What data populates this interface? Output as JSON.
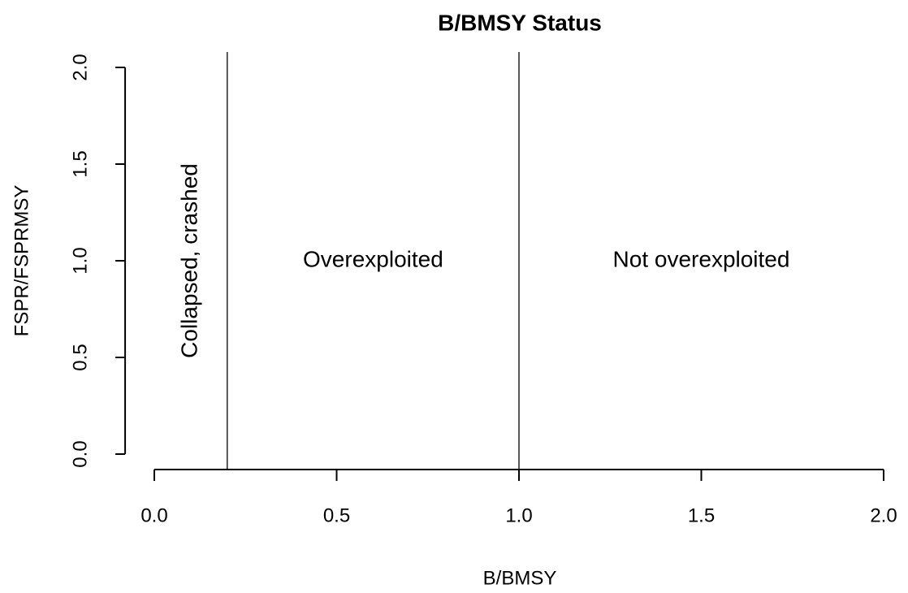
{
  "chart_data": {
    "type": "quadrant",
    "title": "B/BMSY Status",
    "xlabel": "B/BMSY",
    "ylabel": "FSPR/FSPRMSY",
    "xlim": [
      0,
      2
    ],
    "ylim": [
      0,
      2
    ],
    "xticks": [
      {
        "value": 0,
        "label": "0.0"
      },
      {
        "value": 0.5,
        "label": "0.5"
      },
      {
        "value": 1,
        "label": "1.0"
      },
      {
        "value": 1.5,
        "label": "1.5"
      },
      {
        "value": 2,
        "label": "2.0"
      }
    ],
    "yticks": [
      {
        "value": 0,
        "label": "0.0"
      },
      {
        "value": 0.5,
        "label": "0.5"
      },
      {
        "value": 1,
        "label": "1.0"
      },
      {
        "value": 1.5,
        "label": "1.5"
      },
      {
        "value": 2,
        "label": "2.0"
      }
    ],
    "vlines": [
      0.2,
      1.0
    ],
    "color": "#000000",
    "annotations": [
      {
        "text": "Collapsed, crashed",
        "x": 0.1,
        "y": 1.0,
        "rotate": -90
      },
      {
        "text": "Overexploited",
        "x": 0.6,
        "y": 1.0,
        "rotate": 0
      },
      {
        "text": "Not overexploited",
        "x": 1.5,
        "y": 1.0,
        "rotate": 0
      }
    ]
  }
}
